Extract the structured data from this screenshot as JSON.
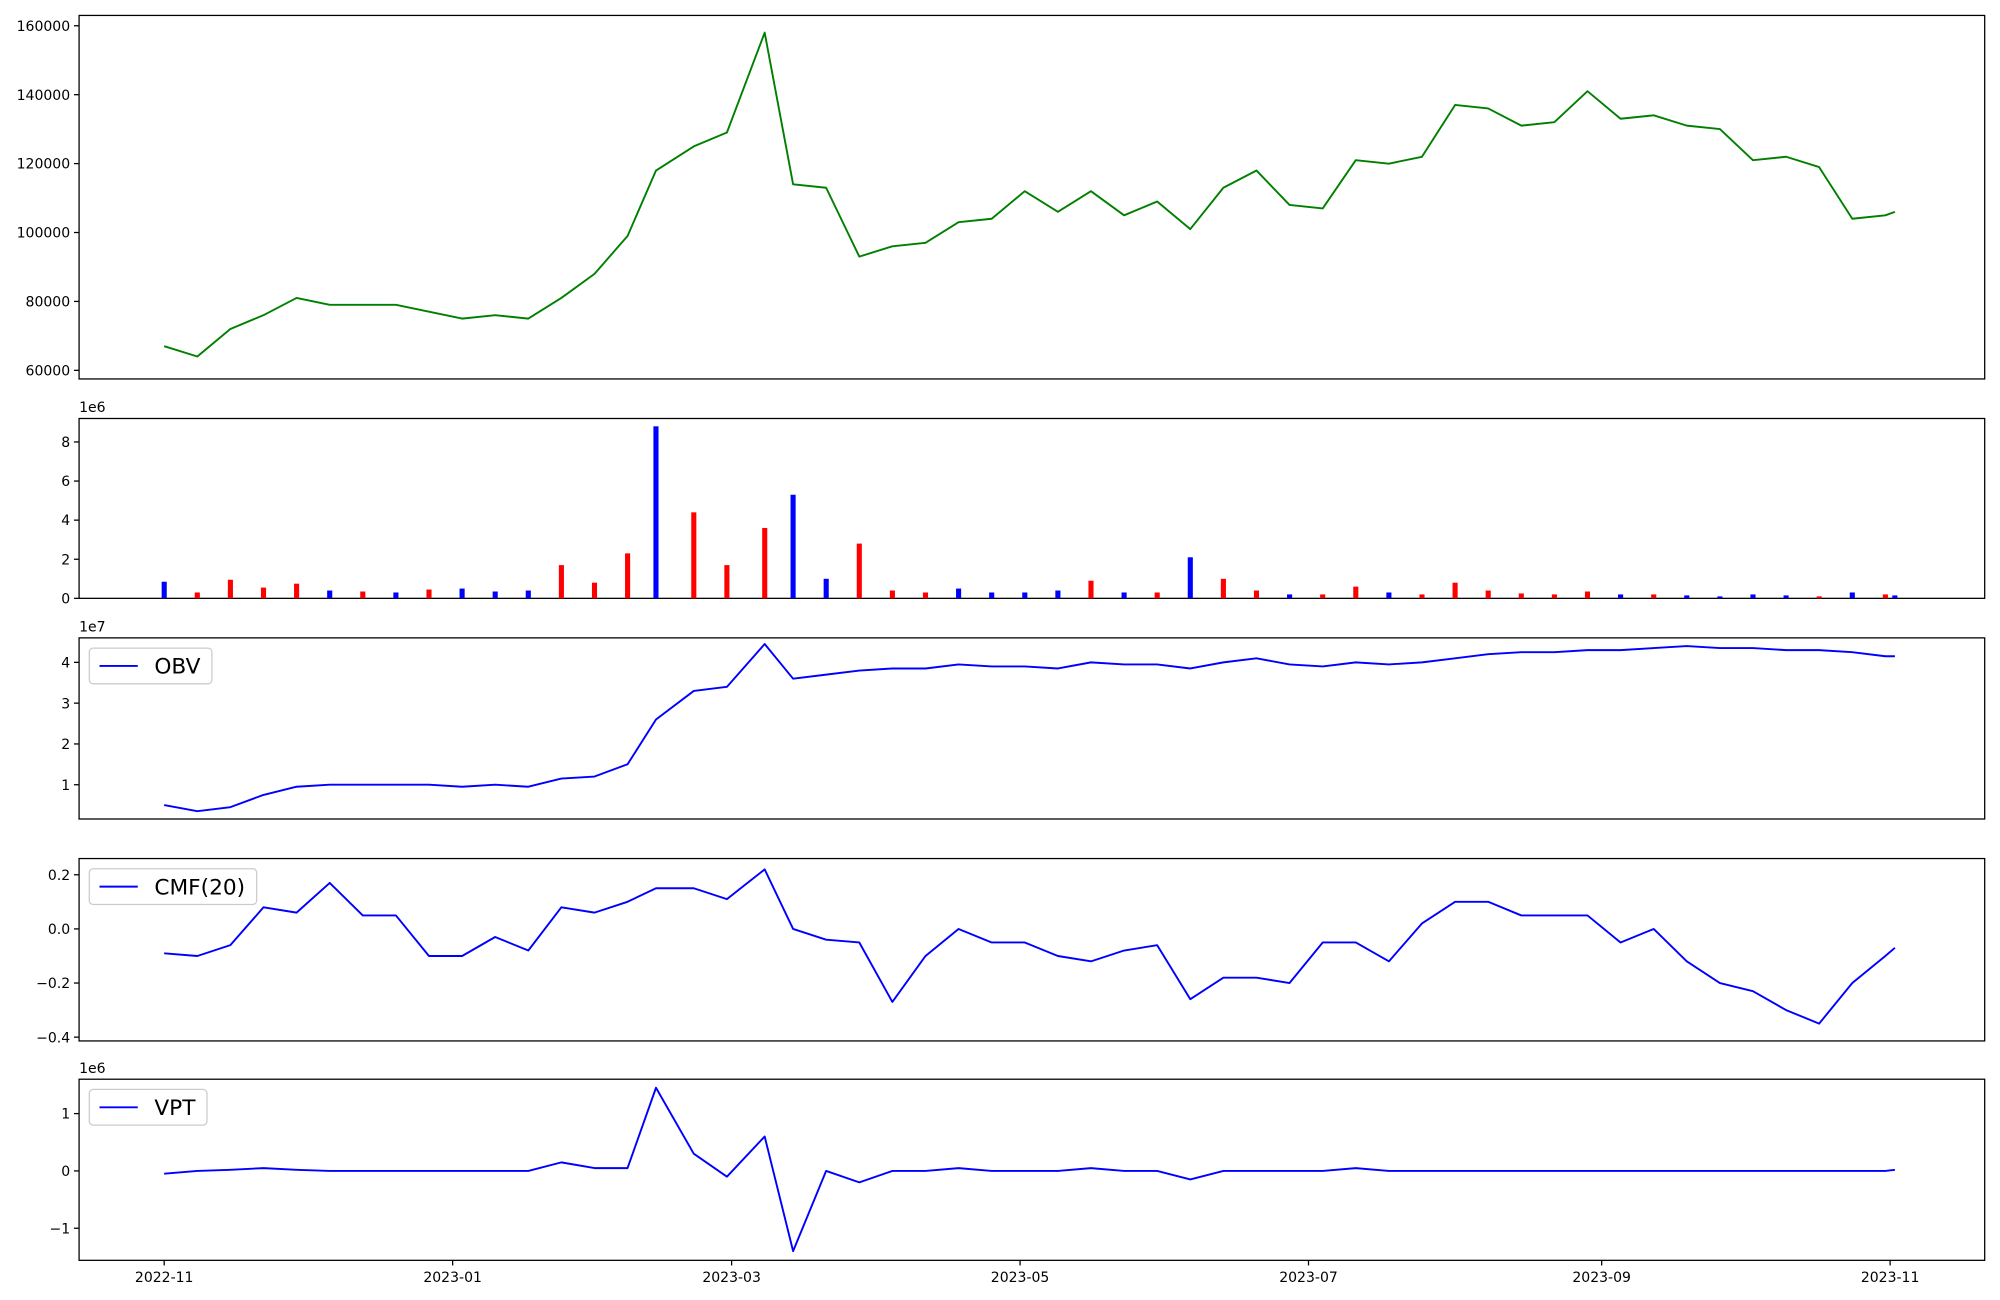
{
  "chart_data": {
    "type": "multi-panel",
    "x": [
      "2022-11-01",
      "2022-11-08",
      "2022-11-15",
      "2022-11-22",
      "2022-11-29",
      "2022-12-06",
      "2022-12-13",
      "2022-12-20",
      "2022-12-27",
      "2023-01-03",
      "2023-01-10",
      "2023-01-17",
      "2023-01-24",
      "2023-01-31",
      "2023-02-07",
      "2023-02-13",
      "2023-02-21",
      "2023-02-28",
      "2023-03-08",
      "2023-03-14",
      "2023-03-21",
      "2023-03-28",
      "2023-04-04",
      "2023-04-11",
      "2023-04-18",
      "2023-04-25",
      "2023-05-02",
      "2023-05-09",
      "2023-05-16",
      "2023-05-23",
      "2023-05-30",
      "2023-06-06",
      "2023-06-13",
      "2023-06-20",
      "2023-06-27",
      "2023-07-04",
      "2023-07-11",
      "2023-07-18",
      "2023-07-25",
      "2023-08-01",
      "2023-08-08",
      "2023-08-15",
      "2023-08-22",
      "2023-08-29",
      "2023-09-05",
      "2023-09-12",
      "2023-09-19",
      "2023-09-26",
      "2023-10-03",
      "2023-10-10",
      "2023-10-17",
      "2023-10-24",
      "2023-10-31",
      "2023-11-02"
    ],
    "xlim": [
      "2022-10-14",
      "2023-11-21"
    ],
    "xticks": [
      {
        "value": "2022-11-01",
        "label": "2022-11"
      },
      {
        "value": "2023-01-01",
        "label": "2023-01"
      },
      {
        "value": "2023-03-01",
        "label": "2023-03"
      },
      {
        "value": "2023-05-01",
        "label": "2023-05"
      },
      {
        "value": "2023-07-01",
        "label": "2023-07"
      },
      {
        "value": "2023-09-01",
        "label": "2023-09"
      },
      {
        "value": "2023-11-01",
        "label": "2023-11"
      }
    ],
    "panels": [
      {
        "type": "line",
        "ylim": [
          57500,
          163000
        ],
        "yticks": [
          60000,
          80000,
          100000,
          120000,
          140000,
          160000
        ],
        "series": [
          {
            "color": "#008000",
            "values": [
              67000,
              64000,
              72000,
              76000,
              81000,
              79000,
              79000,
              79000,
              77000,
              75000,
              76000,
              75000,
              81000,
              88000,
              99000,
              118000,
              125000,
              129000,
              158000,
              114000,
              113000,
              93000,
              96000,
              97000,
              103000,
              104000,
              112000,
              106000,
              112000,
              105000,
              109000,
              101000,
              113000,
              118000,
              108000,
              107000,
              121000,
              120000,
              122000,
              137000,
              136000,
              131000,
              132000,
              141000,
              133000,
              134000,
              131000,
              130000,
              121000,
              122000,
              119000,
              104000,
              105000,
              106000
            ]
          }
        ]
      },
      {
        "type": "bar",
        "ylim": [
          0,
          9.2
        ],
        "yticks": [
          0,
          2,
          4,
          6,
          8
        ],
        "offset_label": "1e6",
        "values": [
          0.85,
          0.3,
          0.95,
          0.55,
          0.75,
          0.4,
          0.35,
          0.3,
          0.45,
          0.5,
          0.35,
          0.4,
          1.7,
          0.8,
          2.3,
          8.8,
          4.4,
          1.7,
          3.6,
          5.3,
          1.0,
          2.8,
          0.4,
          0.3,
          0.5,
          0.3,
          0.3,
          0.4,
          0.9,
          0.3,
          0.3,
          2.1,
          1.0,
          0.4,
          0.2,
          0.2,
          0.6,
          0.3,
          0.2,
          0.8,
          0.4,
          0.25,
          0.2,
          0.35,
          0.2,
          0.2,
          0.15,
          0.1,
          0.2,
          0.15,
          0.1,
          0.3,
          0.2,
          0.15
        ],
        "colors": [
          "blue",
          "red",
          "red",
          "red",
          "red",
          "blue",
          "red",
          "blue",
          "red",
          "blue",
          "blue",
          "blue",
          "red",
          "red",
          "red",
          "blue",
          "red",
          "red",
          "red",
          "blue",
          "blue",
          "red",
          "red",
          "red",
          "blue",
          "blue",
          "blue",
          "blue",
          "red",
          "blue",
          "red",
          "blue",
          "red",
          "red",
          "blue",
          "red",
          "red",
          "blue",
          "red",
          "red",
          "red",
          "red",
          "red",
          "red",
          "blue",
          "red",
          "blue",
          "blue",
          "blue",
          "blue",
          "red",
          "blue",
          "red",
          "blue"
        ]
      },
      {
        "type": "line",
        "ylim": [
          0.16,
          4.6
        ],
        "yticks": [
          1,
          2,
          3,
          4
        ],
        "offset_label": "1e7",
        "legend": "upper left",
        "series": [
          {
            "name": "OBV",
            "color": "#0000ff",
            "values": [
              0.5,
              0.35,
              0.45,
              0.75,
              0.95,
              1.0,
              1.0,
              1.0,
              1.0,
              0.95,
              1.0,
              0.95,
              1.15,
              1.2,
              1.5,
              2.6,
              3.3,
              3.4,
              4.45,
              3.6,
              3.7,
              3.8,
              3.85,
              3.85,
              3.95,
              3.9,
              3.9,
              3.85,
              4.0,
              3.95,
              3.95,
              3.85,
              4.0,
              4.1,
              3.95,
              3.9,
              4.0,
              3.95,
              4.0,
              4.1,
              4.2,
              4.25,
              4.25,
              4.3,
              4.3,
              4.35,
              4.4,
              4.35,
              4.35,
              4.3,
              4.3,
              4.25,
              4.15,
              4.15
            ]
          }
        ]
      },
      {
        "type": "line",
        "ylim": [
          -0.414,
          0.26
        ],
        "yticks": [
          {
            "value": -0.4,
            "label": "−0.4"
          },
          {
            "value": -0.2,
            "label": "−0.2"
          },
          {
            "value": 0,
            "label": "0.0"
          },
          0.2
        ],
        "legend": "upper left",
        "series": [
          {
            "name": "CMF(20)",
            "color": "#0000ff",
            "values": [
              -0.09,
              -0.1,
              -0.06,
              0.08,
              0.06,
              0.17,
              0.05,
              0.05,
              -0.1,
              -0.1,
              -0.03,
              -0.08,
              0.08,
              0.06,
              0.1,
              0.15,
              0.15,
              0.11,
              0.22,
              0.0,
              -0.04,
              -0.05,
              -0.27,
              -0.1,
              0.0,
              -0.05,
              -0.05,
              -0.1,
              -0.12,
              -0.08,
              -0.06,
              -0.26,
              -0.18,
              -0.18,
              -0.2,
              -0.05,
              -0.05,
              -0.12,
              0.02,
              0.1,
              0.1,
              0.05,
              0.05,
              0.05,
              -0.05,
              0.0,
              -0.12,
              -0.2,
              -0.23,
              -0.3,
              -0.35,
              -0.2,
              -0.1,
              -0.07
            ]
          }
        ]
      },
      {
        "type": "line",
        "ylim": [
          -1.56,
          1.6
        ],
        "yticks": [
          {
            "value": -1,
            "label": "−1"
          },
          0,
          1
        ],
        "offset_label": "1e6",
        "legend": "upper left",
        "series": [
          {
            "name": "VPT",
            "color": "#0000ff",
            "values": [
              -0.05,
              0.0,
              0.02,
              0.05,
              0.02,
              0.0,
              0.0,
              0.0,
              0.0,
              0.0,
              0.0,
              0.0,
              0.15,
              0.05,
              0.05,
              1.45,
              0.3,
              -0.1,
              0.6,
              -1.4,
              0.0,
              -0.2,
              0.0,
              0.0,
              0.05,
              0.0,
              0.0,
              0.0,
              0.05,
              0.0,
              0.0,
              -0.15,
              0.0,
              0.0,
              0.0,
              0.0,
              0.05,
              0.0,
              0.0,
              0.0,
              0.0,
              0.0,
              0.0,
              0.0,
              0.0,
              0.0,
              0.0,
              0.0,
              0.0,
              0.0,
              0.0,
              0.0,
              0.0,
              0.02
            ]
          }
        ]
      }
    ]
  }
}
